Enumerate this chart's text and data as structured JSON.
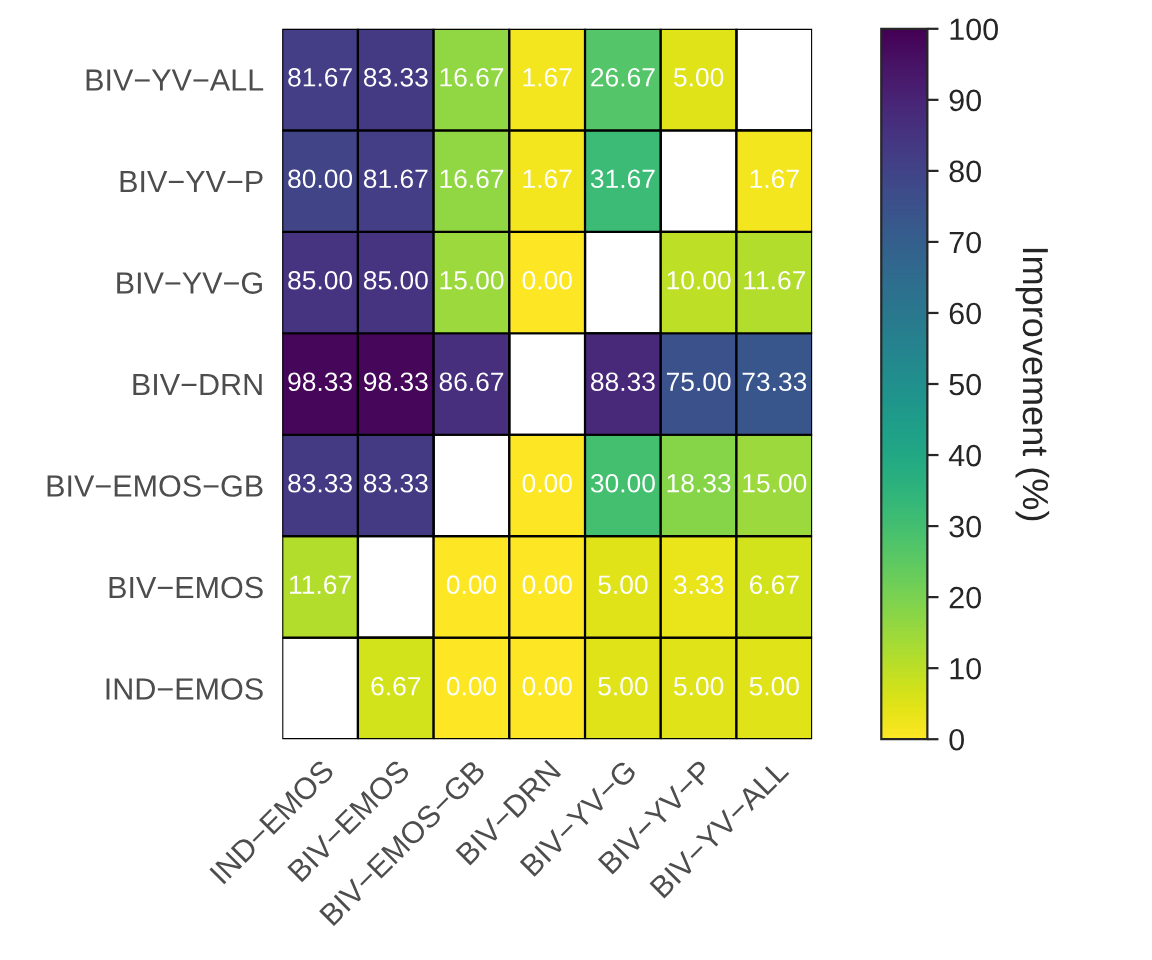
{
  "chart_data": {
    "type": "heatmap",
    "clabel": "Improvement (%)",
    "categories": [
      "IND−EMOS",
      "BIV−EMOS",
      "BIV−EMOS−GB",
      "BIV−DRN",
      "BIV−YV−G",
      "BIV−YV−P",
      "BIV−YV−ALL"
    ],
    "y_categories": [
      "BIV−YV−ALL",
      "BIV−YV−P",
      "BIV−YV−G",
      "BIV−DRN",
      "BIV−EMOS−GB",
      "BIV−EMOS",
      "IND−EMOS"
    ],
    "cells": [
      [
        81.67,
        83.33,
        16.67,
        1.67,
        26.67,
        5.0,
        null
      ],
      [
        80.0,
        81.67,
        16.67,
        1.67,
        31.67,
        null,
        1.67
      ],
      [
        85.0,
        85.0,
        15.0,
        0.0,
        null,
        10.0,
        11.67
      ],
      [
        98.33,
        98.33,
        86.67,
        null,
        88.33,
        75.0,
        73.33
      ],
      [
        83.33,
        83.33,
        null,
        0.0,
        30.0,
        18.33,
        15.0
      ],
      [
        11.67,
        null,
        0.0,
        0.0,
        5.0,
        3.33,
        6.67
      ],
      [
        null,
        6.67,
        0.0,
        0.0,
        5.0,
        5.0,
        5.0
      ]
    ],
    "cell_labels": [
      [
        "81.67",
        "83.33",
        "16.67",
        "1.67",
        "26.67",
        "5.00",
        null
      ],
      [
        "80.00",
        "81.67",
        "16.67",
        "1.67",
        "31.67",
        null,
        "1.67"
      ],
      [
        "85.00",
        "85.00",
        "15.00",
        "0.00",
        null,
        "10.00",
        "11.67"
      ],
      [
        "98.33",
        "98.33",
        "86.67",
        null,
        "88.33",
        "75.00",
        "73.33"
      ],
      [
        "83.33",
        "83.33",
        null,
        "0.00",
        "30.00",
        "18.33",
        "15.00"
      ],
      [
        "11.67",
        null,
        "0.00",
        "0.00",
        "5.00",
        "3.33",
        "6.67"
      ],
      [
        null,
        "6.67",
        "0.00",
        "0.00",
        "5.00",
        "5.00",
        "5.00"
      ]
    ],
    "clim": [
      0,
      100
    ],
    "cticks": [
      0,
      10,
      20,
      30,
      40,
      50,
      60,
      70,
      80,
      90,
      100
    ]
  }
}
